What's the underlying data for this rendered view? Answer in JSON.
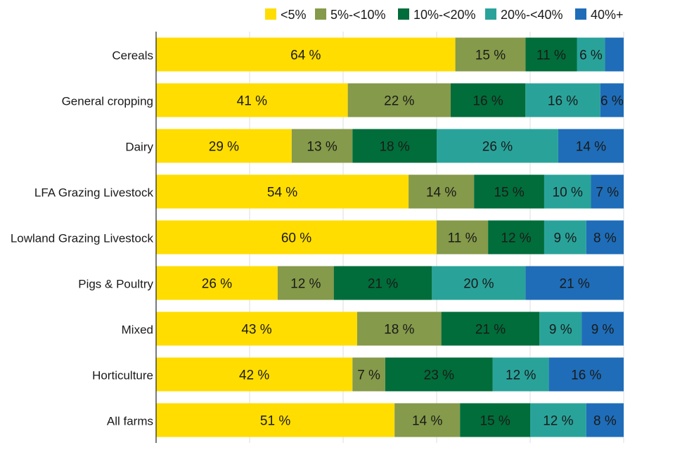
{
  "chart_data": {
    "type": "bar",
    "orientation": "horizontal",
    "stacked": true,
    "percent": true,
    "title": "",
    "xlabel": "",
    "ylabel": "",
    "xlim": [
      0,
      100
    ],
    "grid": true,
    "legend_position": "top-right",
    "value_suffix": " %",
    "categories": [
      "Cereals",
      "General cropping",
      "Dairy",
      "LFA Grazing Livestock",
      "Lowland Grazing Livestock",
      "Pigs & Poultry",
      "Mixed",
      "Horticulture",
      "All farms"
    ],
    "series": [
      {
        "name": "<5%",
        "color": "#FFDD00",
        "values": [
          64,
          41,
          29,
          54,
          60,
          26,
          43,
          42,
          51
        ]
      },
      {
        "name": "5%-<10%",
        "color": "#859A4A",
        "values": [
          15,
          22,
          13,
          14,
          11,
          12,
          18,
          7,
          14
        ]
      },
      {
        "name": "10%-<20%",
        "color": "#006D3A",
        "values": [
          11,
          16,
          18,
          15,
          12,
          21,
          21,
          23,
          15
        ]
      },
      {
        "name": "20%-<40%",
        "color": "#29A39A",
        "values": [
          6,
          16,
          26,
          10,
          9,
          20,
          9,
          12,
          12
        ]
      },
      {
        "name": "40%+",
        "color": "#1F6DB8",
        "values": [
          4,
          6,
          14,
          7,
          8,
          21,
          9,
          16,
          8
        ]
      }
    ],
    "labels_shown": [
      [
        true,
        true,
        true,
        true,
        false
      ],
      [
        true,
        true,
        true,
        true,
        true
      ],
      [
        true,
        true,
        true,
        true,
        true
      ],
      [
        true,
        true,
        true,
        true,
        true
      ],
      [
        true,
        true,
        true,
        true,
        true
      ],
      [
        true,
        true,
        true,
        true,
        true
      ],
      [
        true,
        true,
        true,
        true,
        true
      ],
      [
        true,
        true,
        true,
        true,
        true
      ],
      [
        true,
        true,
        true,
        true,
        true
      ]
    ]
  }
}
